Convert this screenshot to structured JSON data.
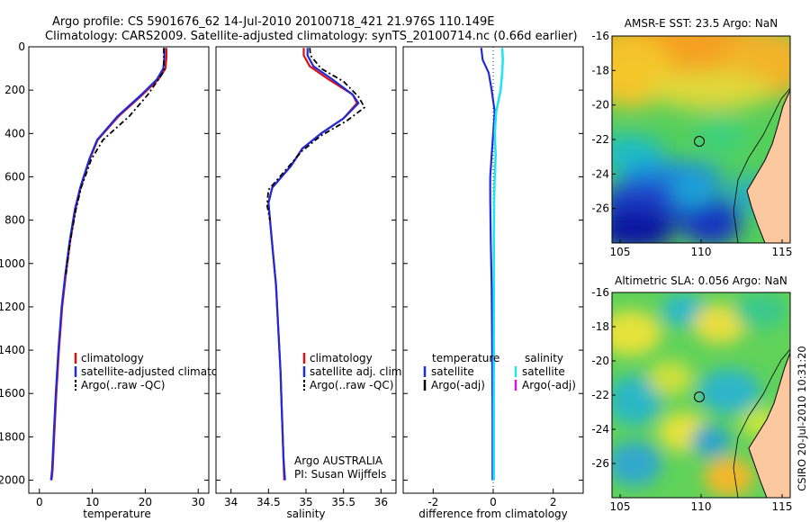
{
  "title_line1": "Argo profile: CS 5901676_62 14-Jul-2010 20100718_421 21.976S 110.149E",
  "title_line2": "Climatology: CARS2009. Satellite-adjusted climatology: synTS_20100714.nc (0.66d earlier)",
  "side_label": "CSIRO 20-Jul-2010 10:31:20",
  "colors": {
    "clim": "#dd1111",
    "sat": "#1f2bd8",
    "argo": "#000000",
    "sal_sat": "#22e5f2",
    "sal_argo": "#d01ad0",
    "land": "#fbc8a0"
  },
  "chart_data": [
    {
      "type": "line",
      "name": "temperature-profile",
      "xlabel": "temperature",
      "ylabel": "",
      "xlim": [
        -2,
        32
      ],
      "ylim": [
        0,
        2060
      ],
      "y_inverted": true,
      "xticks": [
        0,
        10,
        20,
        30
      ],
      "yticks": [
        0,
        200,
        400,
        600,
        800,
        1000,
        1200,
        1400,
        1600,
        1800,
        2000
      ],
      "legend": [
        "climatology",
        "satellite-adjusted climatology",
        "Argo(..raw -QC)"
      ],
      "legend_location": "lower-right",
      "series": [
        {
          "name": "climatology",
          "x": [
            24.0,
            24.0,
            23.8,
            22.5,
            19.5,
            15.0,
            11.0,
            9.5,
            7.8,
            6.8,
            5.8,
            5.0,
            4.3,
            3.7,
            3.2,
            2.8,
            2.5,
            2.3
          ],
          "y": [
            5,
            50,
            100,
            150,
            220,
            320,
            430,
            520,
            650,
            750,
            900,
            1050,
            1200,
            1400,
            1600,
            1800,
            1950,
            2000
          ]
        },
        {
          "name": "satellite-adjusted climatology",
          "x": [
            23.6,
            23.6,
            23.4,
            22.2,
            19.3,
            14.8,
            10.9,
            9.4,
            7.7,
            6.7,
            5.7,
            4.9,
            4.2,
            3.6,
            3.1,
            2.7,
            2.4,
            2.2
          ],
          "y": [
            5,
            50,
            100,
            150,
            220,
            320,
            430,
            520,
            650,
            750,
            900,
            1050,
            1200,
            1400,
            1600,
            1800,
            1950,
            2000
          ]
        },
        {
          "name": "Argo(..raw -QC)",
          "x": [
            23.5,
            23.5,
            23.6,
            22.5,
            20.5,
            17.0,
            12.0,
            9.8,
            7.9,
            6.9,
            5.8,
            5.0
          ],
          "y": [
            5,
            50,
            110,
            150,
            220,
            320,
            430,
            520,
            650,
            750,
            900,
            1050
          ]
        }
      ]
    },
    {
      "type": "line",
      "name": "salinity-profile",
      "xlabel": "salinity",
      "xlim": [
        33.8,
        36.2
      ],
      "ylim": [
        0,
        2060
      ],
      "y_inverted": true,
      "xticks": [
        34,
        34.5,
        35,
        35.5,
        36
      ],
      "legend": [
        "climatology",
        "satellite adj. clim.",
        "Argo(..raw -QC)"
      ],
      "legend_location": "lower-right",
      "annotation": [
        "Argo AUSTRALIA",
        "PI: Susan Wijffels"
      ],
      "series": [
        {
          "name": "climatology",
          "x": [
            34.97,
            34.97,
            35.05,
            35.3,
            35.62,
            35.68,
            35.5,
            35.2,
            34.95,
            34.8,
            34.55,
            34.5,
            34.52,
            34.56,
            34.6,
            34.63,
            34.66,
            34.68,
            34.7,
            34.71
          ],
          "y": [
            5,
            40,
            90,
            150,
            220,
            260,
            330,
            400,
            470,
            550,
            650,
            720,
            800,
            950,
            1100,
            1300,
            1500,
            1700,
            1900,
            2000
          ]
        },
        {
          "name": "satellite adj. clim.",
          "x": [
            35.02,
            35.02,
            35.1,
            35.35,
            35.62,
            35.7,
            35.5,
            35.2,
            34.95,
            34.8,
            34.55,
            34.5,
            34.52,
            34.56,
            34.6,
            34.63,
            34.66,
            34.68,
            34.7,
            34.72
          ],
          "y": [
            5,
            40,
            90,
            150,
            220,
            260,
            330,
            400,
            470,
            550,
            650,
            720,
            800,
            950,
            1100,
            1300,
            1500,
            1700,
            1900,
            2000
          ]
        },
        {
          "name": "Argo(..raw -QC)",
          "x": [
            35.05,
            35.06,
            35.2,
            35.5,
            35.7,
            35.78,
            35.55,
            35.2,
            34.95,
            34.75,
            34.5,
            34.48,
            34.52
          ],
          "y": [
            5,
            40,
            100,
            160,
            230,
            280,
            340,
            410,
            480,
            560,
            660,
            730,
            800
          ]
        }
      ]
    },
    {
      "type": "line",
      "name": "difference-profile",
      "xlabel": "difference from climatology",
      "xlim": [
        -3,
        3
      ],
      "ylim": [
        0,
        2060
      ],
      "y_inverted": true,
      "xticks": [
        -2,
        0,
        2
      ],
      "legend_headers": [
        "temperature",
        "salinity"
      ],
      "legend": [
        "satellite",
        "Argo(-adj)",
        "satellite",
        "Argo(-adj)"
      ],
      "legend_location": "lower-center",
      "series": [
        {
          "name": "temperature satellite",
          "x": [
            -0.4,
            -0.35,
            -0.15,
            -0.05,
            0.05,
            0.0,
            -0.05,
            -0.1,
            -0.1,
            -0.08,
            -0.05,
            -0.04,
            -0.03,
            -0.02,
            -0.02,
            -0.02
          ],
          "y": [
            5,
            60,
            120,
            200,
            300,
            400,
            500,
            600,
            700,
            900,
            1100,
            1300,
            1500,
            1700,
            1900,
            2000
          ]
        },
        {
          "name": "salinity satellite",
          "x": [
            0.3,
            0.32,
            0.3,
            0.25,
            0.1,
            0.05,
            0.08,
            0.05,
            0.03,
            0.02,
            0.02,
            0.02,
            0.02,
            0.02,
            0.02
          ],
          "y": [
            5,
            60,
            120,
            200,
            300,
            400,
            500,
            600,
            700,
            900,
            1100,
            1300,
            1500,
            1800,
            2000
          ]
        }
      ]
    },
    {
      "type": "heatmap",
      "name": "sst-map",
      "title": "AMSR-E SST: 23.5 Argo: NaN",
      "xlim": [
        104.5,
        115.5
      ],
      "ylim": [
        -28,
        -16
      ],
      "xticks": [
        105,
        110,
        115
      ],
      "yticks": [
        -16,
        -18,
        -20,
        -22,
        -24,
        -26
      ],
      "marker": {
        "lon": 110.149,
        "lat": -21.976
      }
    },
    {
      "type": "heatmap",
      "name": "sla-map",
      "title": "Altimetric SLA: 0.056 Argo: NaN",
      "xlim": [
        104.5,
        115.5
      ],
      "ylim": [
        -28,
        -16
      ],
      "xticks": [
        105,
        110,
        115
      ],
      "yticks": [
        -16,
        -18,
        -20,
        -22,
        -24,
        -26
      ],
      "marker": {
        "lon": 110.149,
        "lat": -21.976
      }
    }
  ]
}
